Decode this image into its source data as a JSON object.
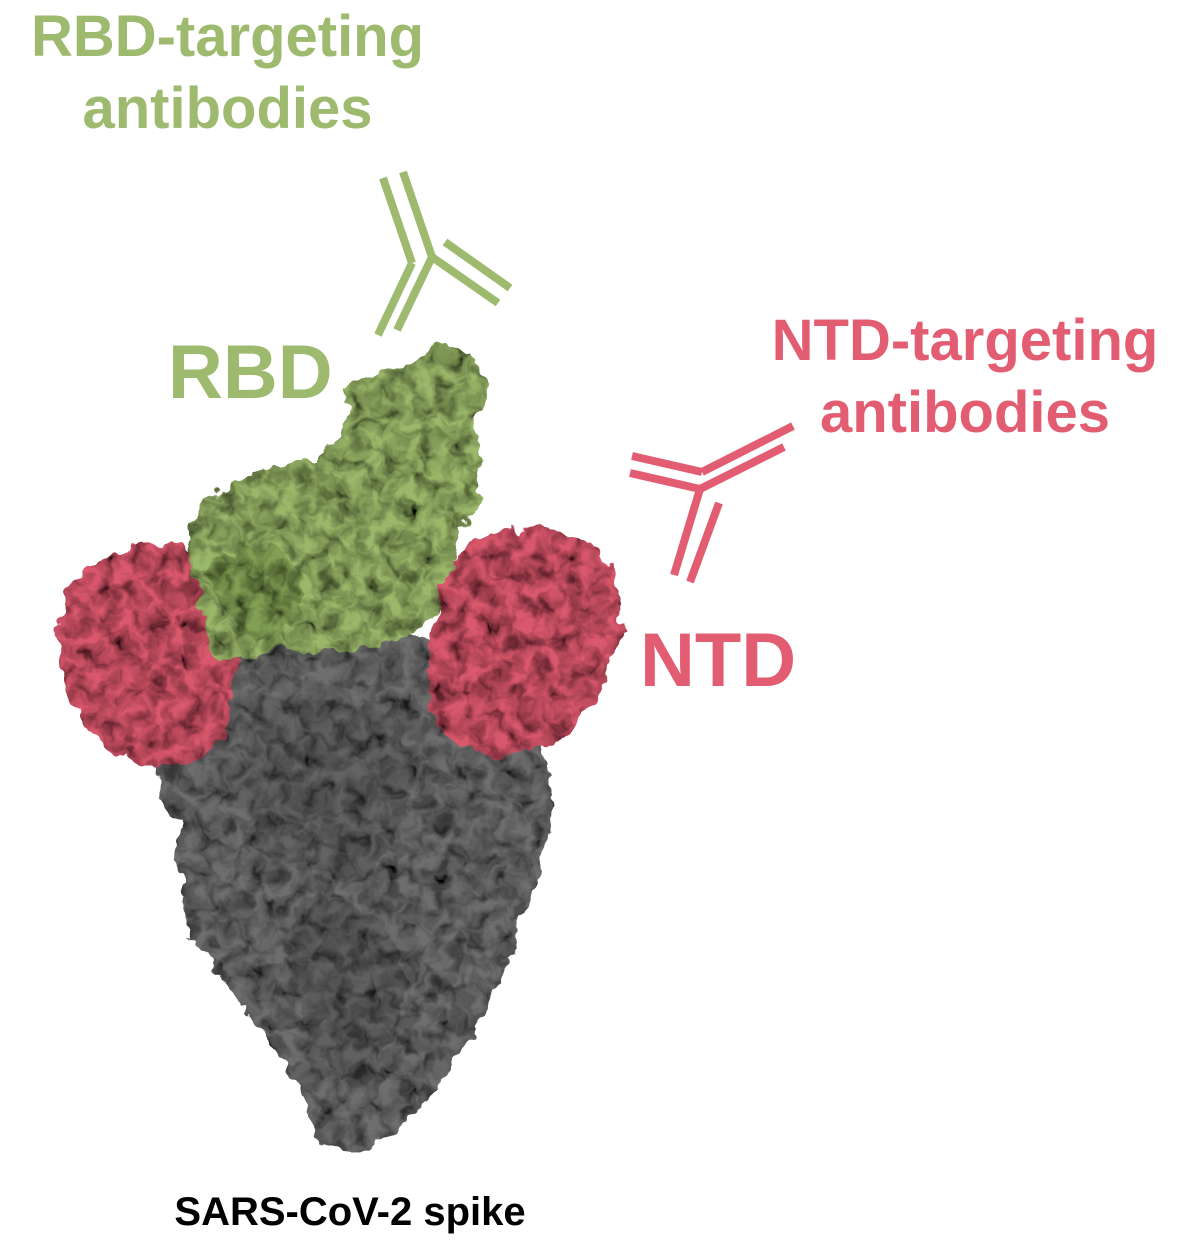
{
  "labels": {
    "rbd_antibodies_line1": "RBD-targeting",
    "rbd_antibodies_line2": "antibodies",
    "ntd_antibodies_line1": "NTD-targeting",
    "ntd_antibodies_line2": "antibodies",
    "rbd": "RBD",
    "ntd": "NTD",
    "caption": "SARS-CoV-2 spike"
  },
  "colors": {
    "rbd": "#9dba6e",
    "ntd": "#e35d72",
    "spike": "#6b6b6b",
    "caption": "#000000"
  }
}
